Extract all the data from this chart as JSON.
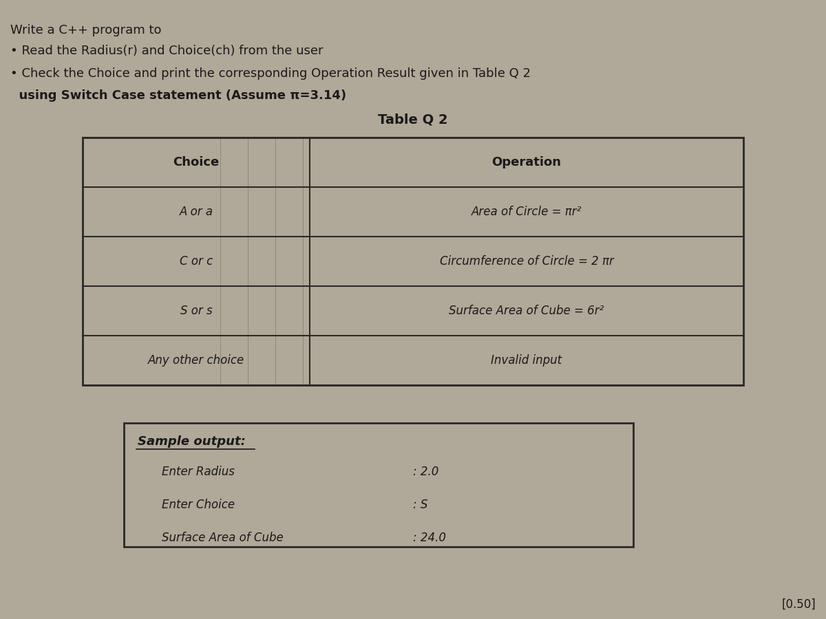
{
  "bg_color": "#b0a898",
  "title_line1": "Write a C++ program to",
  "bullet1": "• Read the Radius(r) and Choice(ch) from the user",
  "bullet2_part1": "• Check the Choice and print the corresponding Operation Result given in Table Q 2",
  "bullet2_part2": "  using Switch Case statement (Assume π=3.14)",
  "table_title": "Table Q 2",
  "table_headers": [
    "Choice",
    "Operation"
  ],
  "table_rows": [
    [
      "A or a",
      "Area of Circle = πr²"
    ],
    [
      "C or c",
      "Circumference of Circle = 2 πr"
    ],
    [
      "S or s",
      "Surface Area of Cube = 6r²"
    ],
    [
      "Any other choice",
      "Invalid input"
    ]
  ],
  "sample_label": "Sample output:",
  "sample_lines": [
    [
      "Enter Radius",
      ": 2.0"
    ],
    [
      "Enter Choice",
      ": S"
    ],
    [
      "Surface Area of Cube",
      ": 24.0"
    ]
  ],
  "marks": "[0.50]",
  "text_color": "#1a1a1a",
  "table_bg": "#b0a898",
  "table_border_color": "#2a2a2a",
  "sample_box_bg": "#b0a898"
}
